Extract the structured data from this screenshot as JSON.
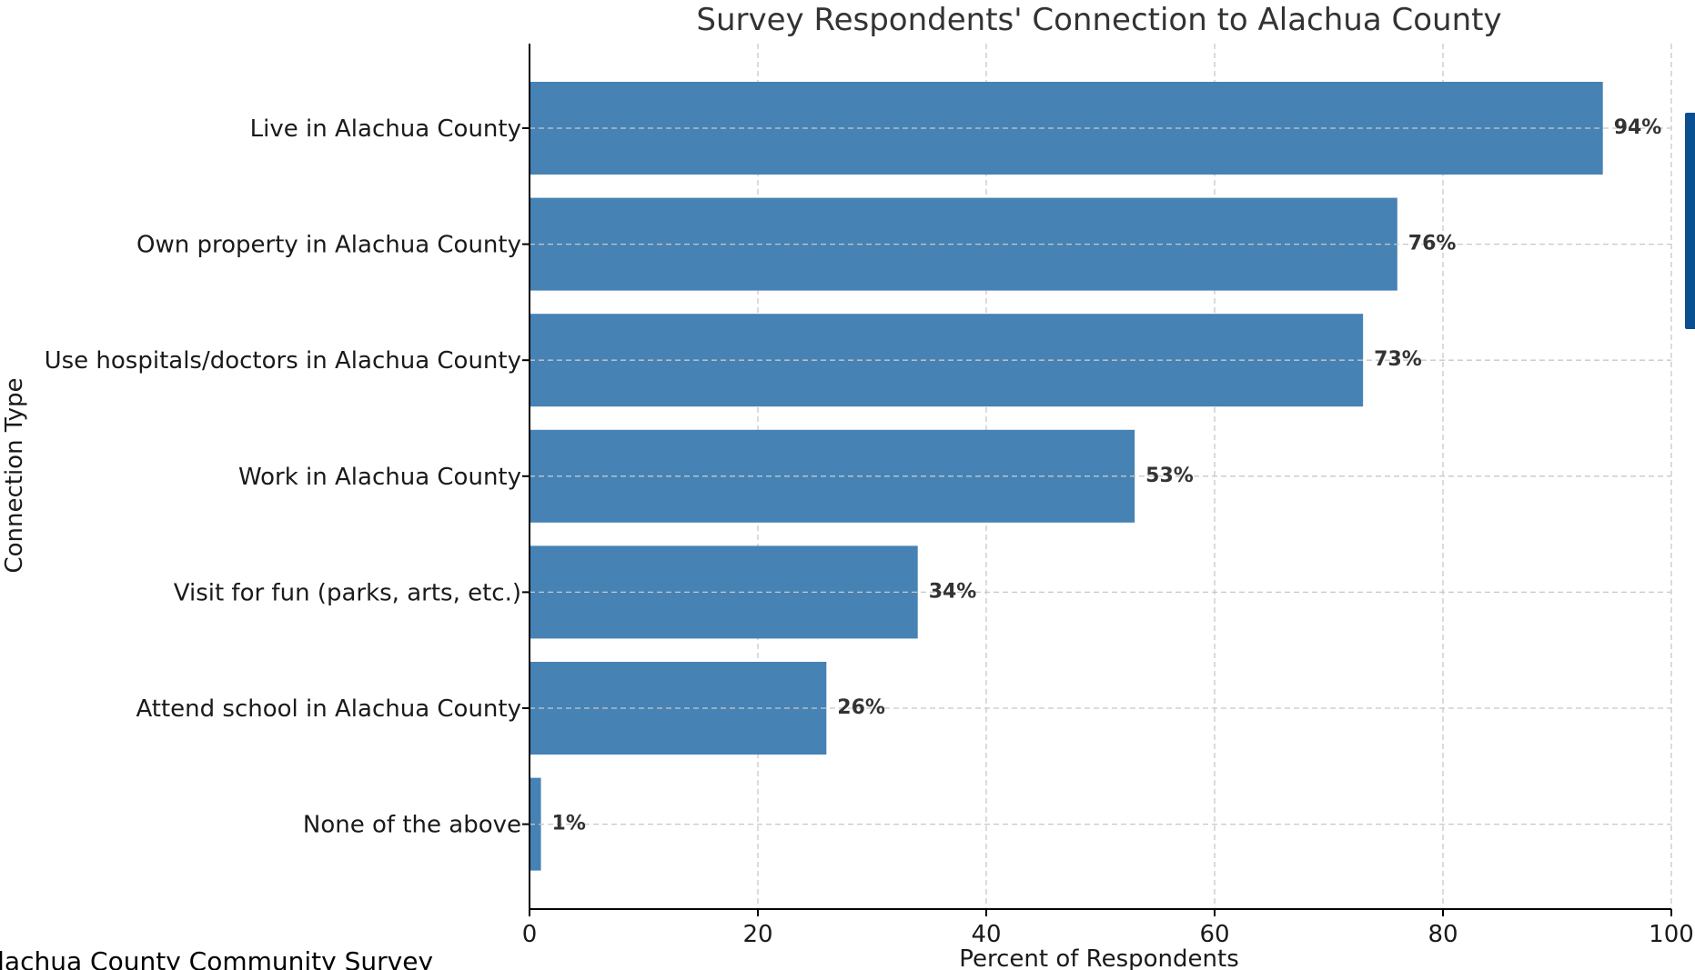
{
  "chart_data": {
    "type": "bar",
    "orientation": "horizontal",
    "title": "Survey Respondents' Connection to Alachua County",
    "xlabel": "Percent of Respondents",
    "ylabel": "Connection Type",
    "xlim": [
      0,
      100
    ],
    "xticks": [
      0,
      20,
      40,
      60,
      80,
      100
    ],
    "grid": true,
    "categories": [
      "Live in Alachua County",
      "Own property in Alachua County",
      "Use hospitals/doctors in Alachua County",
      "Work in Alachua County",
      "Visit for fun (parks, arts, etc.)",
      "Attend school in Alachua County",
      "None of the above"
    ],
    "values": [
      94,
      76,
      73,
      53,
      34,
      26,
      1
    ],
    "value_labels": [
      "94%",
      "76%",
      "73%",
      "53%",
      "34%",
      "26%",
      "1%"
    ],
    "bar_color": "#4682b4",
    "legend_color": "#0a4f8f",
    "footer": "Alachua County Community Survey"
  }
}
